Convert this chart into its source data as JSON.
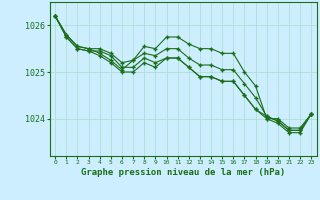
{
  "title": "Graphe pression niveau de la mer (hPa)",
  "background_color": "#cceeff",
  "grid_color": "#aaddcc",
  "line_color": "#1a6e1a",
  "marker_color": "#1a6e1a",
  "x_ticks": [
    0,
    1,
    2,
    3,
    4,
    5,
    6,
    7,
    8,
    9,
    10,
    11,
    12,
    13,
    14,
    15,
    16,
    17,
    18,
    19,
    20,
    21,
    22,
    23
  ],
  "ylim": [
    1023.2,
    1026.5
  ],
  "yticks": [
    1024,
    1025,
    1026
  ],
  "series": [
    [
      1026.2,
      1025.8,
      1025.55,
      1025.5,
      1025.4,
      1025.25,
      1025.05,
      1025.25,
      1025.55,
      1025.5,
      1025.75,
      1025.75,
      1025.6,
      1025.5,
      1025.5,
      1025.4,
      1025.4,
      1025.0,
      1024.7,
      1024.0,
      1024.0,
      1023.8,
      1023.8,
      1024.1
    ],
    [
      1026.2,
      1025.8,
      1025.55,
      1025.5,
      1025.5,
      1025.4,
      1025.2,
      1025.25,
      1025.4,
      1025.35,
      1025.5,
      1025.5,
      1025.3,
      1025.15,
      1025.15,
      1025.05,
      1025.05,
      1024.75,
      1024.45,
      1024.05,
      1023.95,
      1023.75,
      1023.75,
      1024.1
    ],
    [
      1026.2,
      1025.75,
      1025.5,
      1025.45,
      1025.35,
      1025.2,
      1025.0,
      1025.0,
      1025.2,
      1025.1,
      1025.3,
      1025.3,
      1025.1,
      1024.9,
      1024.9,
      1024.8,
      1024.8,
      1024.5,
      1024.2,
      1024.0,
      1023.9,
      1023.7,
      1023.7,
      1024.1
    ],
    [
      1026.2,
      1025.75,
      1025.5,
      1025.45,
      1025.45,
      1025.35,
      1025.1,
      1025.1,
      1025.3,
      1025.2,
      1025.3,
      1025.3,
      1025.1,
      1024.9,
      1024.9,
      1024.8,
      1024.8,
      1024.5,
      1024.2,
      1024.05,
      1023.95,
      1023.75,
      1023.75,
      1024.1
    ]
  ]
}
